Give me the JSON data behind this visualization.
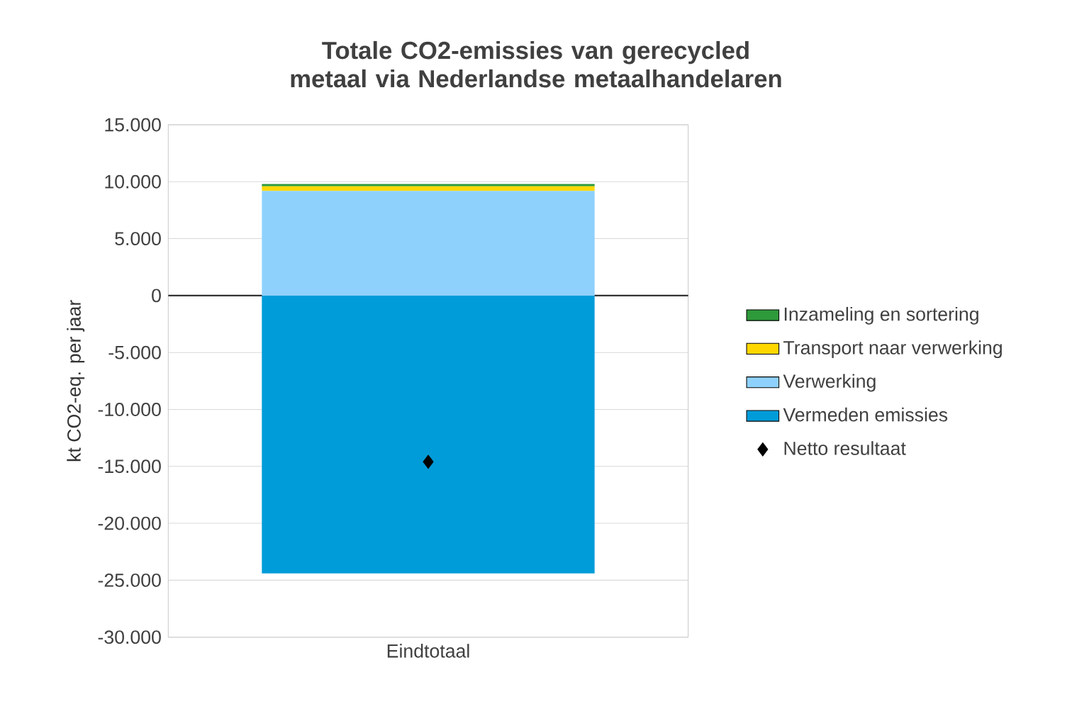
{
  "chart_data": {
    "type": "bar",
    "stacked": true,
    "title": "Totale CO2-emissies van gerecycled metaal via Nederlandse metaalhandelaren",
    "ylabel": "kt CO2-eq. per jaar",
    "categories": [
      "Eindtotaal"
    ],
    "series": [
      {
        "name": "Vermeden emissies",
        "color": "#009cd9",
        "values": [
          -24400
        ]
      },
      {
        "name": "Verwerking",
        "color": "#8ed1fc",
        "values": [
          9200
        ]
      },
      {
        "name": "Transport naar verwerking",
        "color": "#ffd700",
        "values": [
          400
        ]
      },
      {
        "name": "Inzameling en sortering",
        "color": "#2e9a3a",
        "values": [
          200
        ]
      },
      {
        "name": "Netto resultaat",
        "type": "scatter",
        "marker": "diamond",
        "color": "#000000",
        "x": [
          "Eindtotaal"
        ],
        "values": [
          -14600
        ]
      }
    ],
    "ylim": [
      -30000,
      15000
    ],
    "yticks": [
      {
        "value": -30000,
        "label": "-30.000"
      },
      {
        "value": -25000,
        "label": "-25.000"
      },
      {
        "value": -20000,
        "label": "-20.000"
      },
      {
        "value": -15000,
        "label": "-15.000"
      },
      {
        "value": -10000,
        "label": "-10.000"
      },
      {
        "value": -5000,
        "label": "-5.000"
      },
      0,
      {
        "value": 5000,
        "label": "5.000"
      },
      {
        "value": 10000,
        "label": "10.000"
      },
      {
        "value": 15000,
        "label": "15.000"
      }
    ],
    "grid": "y",
    "legend": "right"
  }
}
